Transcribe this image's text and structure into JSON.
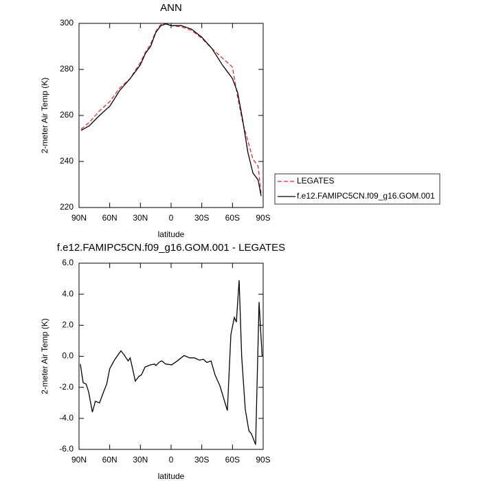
{
  "chart_data": [
    {
      "type": "line",
      "title": "ANN",
      "xlabel": "latitude",
      "ylabel": "2-meter Air Temp (K)",
      "x": [
        88,
        80,
        70,
        60,
        50,
        40,
        30,
        25,
        20,
        15,
        10,
        5,
        0,
        -10,
        -20,
        -30,
        -40,
        -50,
        -55,
        -60,
        -65,
        -70,
        -75,
        -80,
        -85,
        -88
      ],
      "series": [
        {
          "name": "LEGATES",
          "color": "#e8282d",
          "linestyle": "dashed",
          "values": [
            254,
            257,
            262,
            266,
            272,
            276,
            283,
            287.5,
            291,
            296.5,
            299.5,
            299.8,
            299,
            298.5,
            297,
            293.5,
            289,
            285,
            283,
            281,
            268,
            257,
            249,
            241,
            238,
            226
          ]
        },
        {
          "name": "f.e12.FAMIPC5CN.f09_g16.GOM.001",
          "color": "#000000",
          "linestyle": "solid",
          "values": [
            253.5,
            255.5,
            260,
            264,
            271,
            276,
            282,
            287,
            290,
            296,
            299,
            299.8,
            299,
            299,
            297.5,
            294,
            289,
            282,
            279,
            276,
            270,
            258,
            244,
            235,
            232,
            225
          ]
        }
      ],
      "xlim": [
        90,
        -90
      ],
      "xticks": [
        {
          "value": 90,
          "label": "90N"
        },
        {
          "value": 60,
          "label": "60N"
        },
        {
          "value": 30,
          "label": "30N"
        },
        0,
        {
          "value": -30,
          "label": "30S"
        },
        {
          "value": -60,
          "label": "60S"
        },
        {
          "value": -90,
          "label": "90S"
        }
      ],
      "ylim": [
        220,
        300
      ],
      "yticks": [
        220,
        240,
        260,
        280,
        300
      ],
      "legend": "right"
    },
    {
      "type": "line",
      "title": "f.e12.FAMIPC5CN.f09_g16.GOM.001 - LEGATES",
      "xlabel": "latitude",
      "ylabel": "2-meter Air Temp (K)",
      "x": [
        88.7,
        86,
        83,
        80.6,
        77,
        74,
        70,
        66,
        63,
        60,
        55,
        49,
        46,
        42,
        40,
        37.6,
        35,
        31.6,
        29,
        25.5,
        20,
        16,
        15,
        11,
        9,
        5.4,
        -0.7,
        -6,
        -12.7,
        -18,
        -23,
        -27.5,
        -31.6,
        -35,
        -39,
        -43,
        -47.7,
        -55,
        -58.4,
        -61.8,
        -63.8,
        -66.5,
        -69,
        -72.5,
        -76,
        -78.5,
        -82.6,
        -86,
        -89
      ],
      "color": "#000000",
      "values": [
        -0.5,
        -1.7,
        -1.8,
        -2.3,
        -3.6,
        -2.9,
        -3.0,
        -2.3,
        -1.8,
        -0.8,
        -0.2,
        0.35,
        0.1,
        -0.3,
        -0.1,
        -0.8,
        -1.6,
        -1.3,
        -1.2,
        -0.7,
        -0.55,
        -0.5,
        -0.6,
        -0.35,
        -0.3,
        -0.5,
        -0.55,
        -0.3,
        0.05,
        -0.1,
        -0.1,
        -0.25,
        -0.2,
        -0.4,
        -0.3,
        -1.2,
        -1.9,
        -3.5,
        1.4,
        2.5,
        2.2,
        4.9,
        0,
        -3.4,
        -4.8,
        -5.0,
        -5.7,
        3.5,
        0
      ],
      "xlim": [
        90,
        -90
      ],
      "xticks": [
        {
          "value": 90,
          "label": "90N"
        },
        {
          "value": 60,
          "label": "60N"
        },
        {
          "value": 30,
          "label": "30N"
        },
        0,
        {
          "value": -30,
          "label": "30S"
        },
        {
          "value": -60,
          "label": "60S"
        },
        {
          "value": -90,
          "label": "90S"
        }
      ],
      "ylim": [
        -6,
        6
      ],
      "yticks": [
        {
          "value": -6,
          "label": "-6.0"
        },
        {
          "value": -4,
          "label": "-4.0"
        },
        {
          "value": -2,
          "label": "-2.0"
        },
        {
          "value": 0,
          "label": "0.0"
        },
        {
          "value": 2,
          "label": "2.0"
        },
        {
          "value": 4,
          "label": "4.0"
        },
        {
          "value": 6,
          "label": "6.0"
        }
      ]
    }
  ]
}
